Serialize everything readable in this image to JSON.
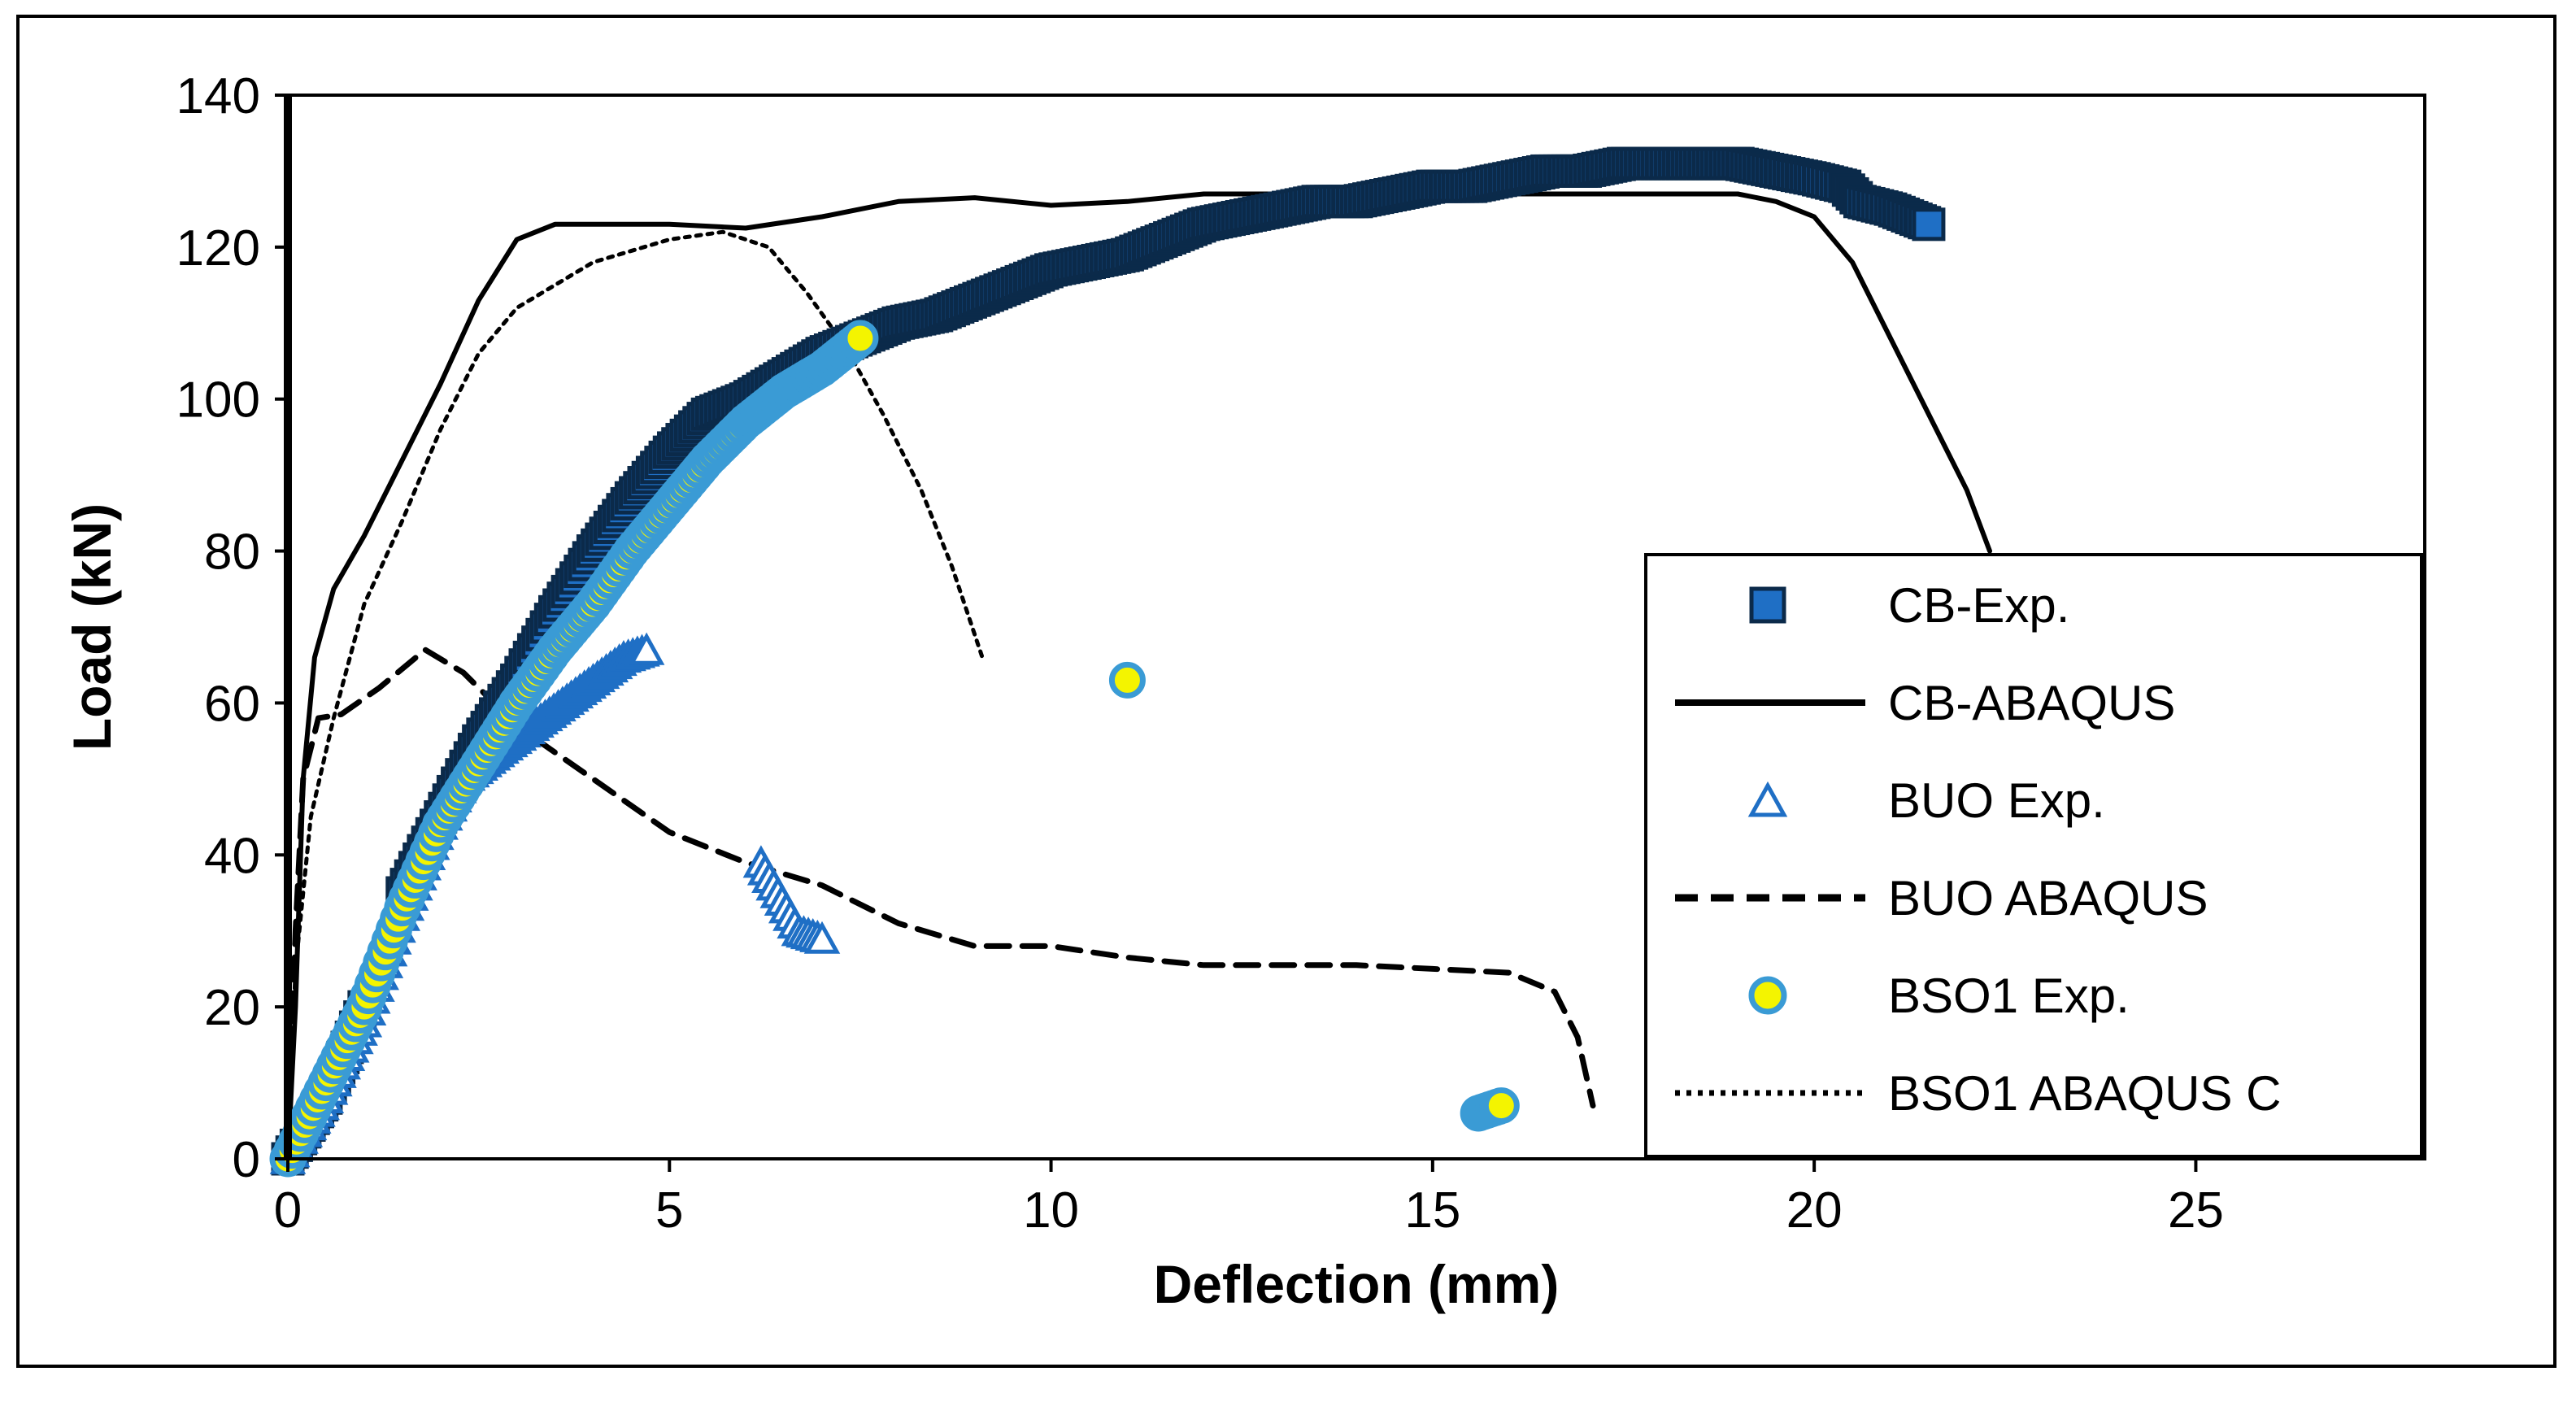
{
  "chart_data": {
    "type": "scatter",
    "title": "",
    "xlabel": "Deflection (mm)",
    "ylabel": "Load (kN)",
    "xlim": [
      0,
      28
    ],
    "ylim": [
      0,
      140
    ],
    "xticks": [
      0,
      5,
      10,
      15,
      20,
      25
    ],
    "yticks": [
      0,
      20,
      40,
      60,
      80,
      100,
      120,
      140
    ],
    "grid": false,
    "legend_position": "right",
    "series": [
      {
        "name": "CB-Exp.",
        "kind": "markers",
        "marker": "square",
        "color": "#1f6fc5",
        "points": [
          [
            0,
            0
          ],
          [
            0.5,
            8
          ],
          [
            1,
            20
          ],
          [
            1.5,
            35
          ],
          [
            2,
            45
          ],
          [
            2.5,
            55
          ],
          [
            3,
            63
          ],
          [
            3.5,
            72
          ],
          [
            4,
            80
          ],
          [
            4.5,
            87
          ],
          [
            5,
            93
          ],
          [
            5.5,
            98
          ],
          [
            6,
            100
          ],
          [
            6.5,
            103
          ],
          [
            7,
            106
          ],
          [
            7.5,
            108
          ],
          [
            8,
            110
          ],
          [
            8.5,
            111
          ],
          [
            9,
            113
          ],
          [
            9.5,
            115
          ],
          [
            10,
            117
          ],
          [
            10.5,
            118
          ],
          [
            11,
            119
          ],
          [
            11.5,
            121
          ],
          [
            12,
            123
          ],
          [
            12.5,
            124
          ],
          [
            13,
            125
          ],
          [
            13.5,
            126
          ],
          [
            14,
            126
          ],
          [
            14.5,
            127
          ],
          [
            15,
            128
          ],
          [
            15.5,
            128
          ],
          [
            16,
            129
          ],
          [
            16.5,
            130
          ],
          [
            17,
            130
          ],
          [
            17.5,
            131
          ],
          [
            18,
            131
          ],
          [
            18.5,
            131
          ],
          [
            19,
            131
          ],
          [
            19.5,
            130
          ],
          [
            20,
            129
          ],
          [
            20.4,
            128
          ],
          [
            20.6,
            126
          ],
          [
            21,
            125
          ],
          [
            21.5,
            123
          ]
        ]
      },
      {
        "name": "CB-ABAQUS",
        "kind": "line",
        "dash": "solid",
        "color": "#000000",
        "points": [
          [
            0,
            0
          ],
          [
            0.1,
            20
          ],
          [
            0.2,
            50
          ],
          [
            0.35,
            66
          ],
          [
            0.6,
            75
          ],
          [
            1,
            82
          ],
          [
            1.5,
            92
          ],
          [
            2,
            102
          ],
          [
            2.5,
            113
          ],
          [
            3,
            121
          ],
          [
            3.5,
            123
          ],
          [
            4,
            123
          ],
          [
            5,
            123
          ],
          [
            6,
            122.5
          ],
          [
            7,
            124
          ],
          [
            8,
            126
          ],
          [
            9,
            126.5
          ],
          [
            10,
            125.5
          ],
          [
            11,
            126
          ],
          [
            12,
            127
          ],
          [
            14,
            127
          ],
          [
            16,
            127
          ],
          [
            18,
            127
          ],
          [
            19,
            127
          ],
          [
            19.5,
            126
          ],
          [
            20,
            124
          ],
          [
            20.5,
            118
          ],
          [
            21,
            108
          ],
          [
            21.5,
            98
          ],
          [
            22,
            88
          ],
          [
            22.3,
            80
          ]
        ]
      },
      {
        "name": "BUO Exp.",
        "kind": "markers",
        "marker": "triangle",
        "color": "#1f6fc5",
        "points": [
          [
            0,
            0
          ],
          [
            0.5,
            8
          ],
          [
            1,
            18
          ],
          [
            1.5,
            32
          ],
          [
            2,
            44
          ],
          [
            2.3,
            50
          ],
          [
            2.8,
            54
          ],
          [
            3.2,
            57
          ],
          [
            3.6,
            60
          ],
          [
            4,
            63
          ],
          [
            4.4,
            66
          ],
          [
            4.7,
            67
          ],
          [
            6.2,
            39
          ],
          [
            6.7,
            30
          ],
          [
            7,
            29
          ]
        ]
      },
      {
        "name": "BUO ABAQUS",
        "kind": "line",
        "dash": "dashed",
        "color": "#000000",
        "points": [
          [
            0,
            0
          ],
          [
            0.1,
            30
          ],
          [
            0.2,
            50
          ],
          [
            0.4,
            58
          ],
          [
            0.7,
            58.5
          ],
          [
            1.2,
            62
          ],
          [
            1.8,
            67
          ],
          [
            2.3,
            64
          ],
          [
            3,
            57
          ],
          [
            4,
            50
          ],
          [
            5,
            43
          ],
          [
            6,
            39
          ],
          [
            7,
            36
          ],
          [
            8,
            31
          ],
          [
            9,
            28
          ],
          [
            10,
            28
          ],
          [
            11,
            26.5
          ],
          [
            12,
            25.5
          ],
          [
            13,
            25.5
          ],
          [
            14,
            25.5
          ],
          [
            15,
            25
          ],
          [
            16,
            24.5
          ],
          [
            16.6,
            22
          ],
          [
            16.9,
            16
          ],
          [
            17.1,
            7
          ]
        ]
      },
      {
        "name": "BSO1 Exp.",
        "kind": "markers",
        "marker": "circle",
        "color": "#f4f400",
        "edge_color": "#3a9bd5",
        "points": [
          [
            0,
            0
          ],
          [
            0.5,
            10
          ],
          [
            1,
            20
          ],
          [
            1.5,
            33
          ],
          [
            2,
            44
          ],
          [
            2.5,
            52
          ],
          [
            3,
            60
          ],
          [
            3.5,
            67
          ],
          [
            4,
            73
          ],
          [
            4.5,
            80
          ],
          [
            5,
            86
          ],
          [
            5.5,
            92
          ],
          [
            6,
            97
          ],
          [
            6.5,
            101
          ],
          [
            7,
            104
          ],
          [
            7.5,
            108
          ],
          [
            11,
            63
          ],
          [
            15.6,
            6
          ],
          [
            15.9,
            7
          ]
        ]
      },
      {
        "name": "BSO1 ABAQUS C",
        "kind": "line",
        "dash": "dotted",
        "color": "#000000",
        "points": [
          [
            0,
            0
          ],
          [
            0.1,
            25
          ],
          [
            0.3,
            45
          ],
          [
            0.6,
            58
          ],
          [
            1,
            73
          ],
          [
            1.5,
            84
          ],
          [
            2,
            96
          ],
          [
            2.5,
            106
          ],
          [
            3,
            112
          ],
          [
            4,
            118
          ],
          [
            5,
            121
          ],
          [
            5.7,
            122
          ],
          [
            6.3,
            120
          ],
          [
            6.8,
            114
          ],
          [
            7.3,
            107
          ],
          [
            7.8,
            98
          ],
          [
            8.3,
            88
          ],
          [
            8.7,
            78
          ],
          [
            9.1,
            66
          ]
        ]
      }
    ]
  }
}
